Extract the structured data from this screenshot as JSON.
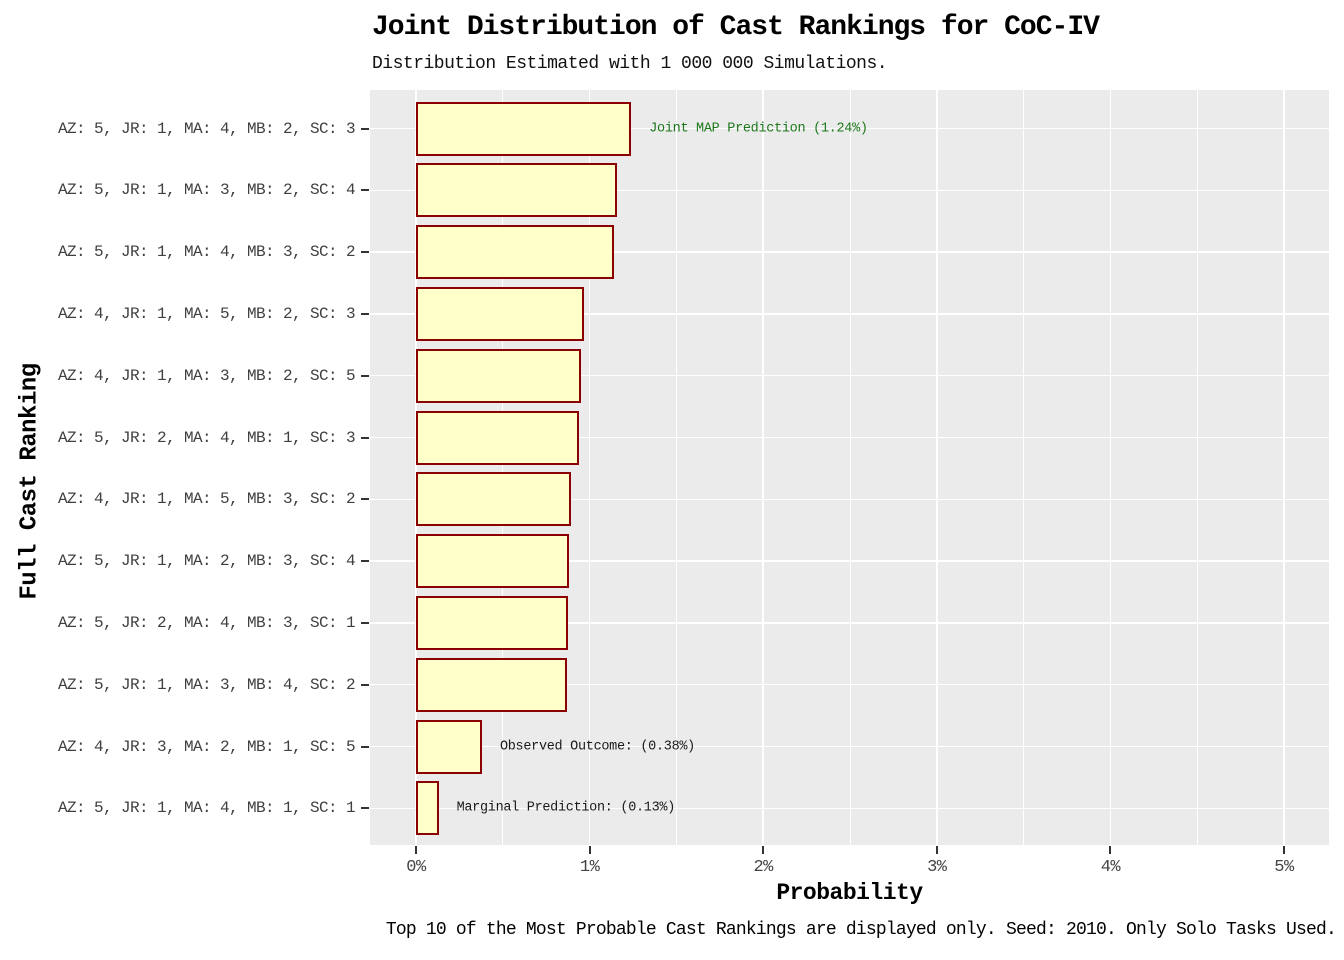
{
  "title": "Joint Distribution of Cast Rankings for CoC-IV",
  "subtitle": "Distribution Estimated with 1 000 000 Simulations.",
  "caption": "Top 10 of the Most Probable Cast Rankings are displayed only. Seed: 2010. Only Solo Tasks Used.",
  "x_axis": {
    "label": "Probability",
    "tick_labels": [
      "0%",
      "1%",
      "2%",
      "3%",
      "4%",
      "5%"
    ],
    "tick_values": [
      0,
      1,
      2,
      3,
      4,
      5
    ]
  },
  "y_axis": {
    "label": "Full Cast Ranking"
  },
  "chart_data": {
    "type": "bar",
    "orientation": "horizontal",
    "title": "Joint Distribution of Cast Rankings for CoC-IV",
    "subtitle": "Distribution Estimated with 1 000 000 Simulations.",
    "caption": "Top 10 of the Most Probable Cast Rankings are displayed only. Seed: 2010. Only Solo Tasks Used.",
    "xlabel": "Probability",
    "ylabel": "Full Cast Ranking",
    "xlim": [
      0,
      5.27
    ],
    "grid": "on",
    "legend": "none",
    "categories": [
      "AZ: 5, JR: 1, MA: 4, MB: 2, SC: 3",
      "AZ: 5, JR: 1, MA: 3, MB: 2, SC: 4",
      "AZ: 5, JR: 1, MA: 4, MB: 3, SC: 2",
      "AZ: 4, JR: 1, MA: 5, MB: 2, SC: 3",
      "AZ: 4, JR: 1, MA: 3, MB: 2, SC: 5",
      "AZ: 5, JR: 2, MA: 4, MB: 1, SC: 3",
      "AZ: 4, JR: 1, MA: 5, MB: 3, SC: 2",
      "AZ: 5, JR: 1, MA: 2, MB: 3, SC: 4",
      "AZ: 5, JR: 2, MA: 4, MB: 3, SC: 1",
      "AZ: 5, JR: 1, MA: 3, MB: 4, SC: 2",
      "AZ: 4, JR: 3, MA: 2, MB: 1, SC: 5",
      "AZ: 5, JR: 1, MA: 4, MB: 1, SC: 1"
    ],
    "values": [
      1.24,
      1.16,
      1.14,
      0.97,
      0.95,
      0.94,
      0.89,
      0.88,
      0.875,
      0.87,
      0.38,
      0.13
    ],
    "annotations": [
      {
        "name": "joint-map-prediction",
        "row": 0,
        "text": "Joint MAP Prediction (1.24%)",
        "color": "#1D781D"
      },
      {
        "name": "observed-outcome",
        "row": 10,
        "text": "Observed Outcome: (0.38%)",
        "color": "#1a1a1a"
      },
      {
        "name": "marginal-prediction",
        "row": 11,
        "text": "Marginal Prediction: (0.13%)",
        "color": "#1a1a1a"
      }
    ],
    "colors": {
      "bar_fill": "#FFFFC9",
      "bar_border": "#8B0000",
      "panel_background": "#EBEBEB",
      "gridline": "#FFFFFF",
      "axis_text": "#444444",
      "annotation_green": "#1D781D"
    }
  }
}
